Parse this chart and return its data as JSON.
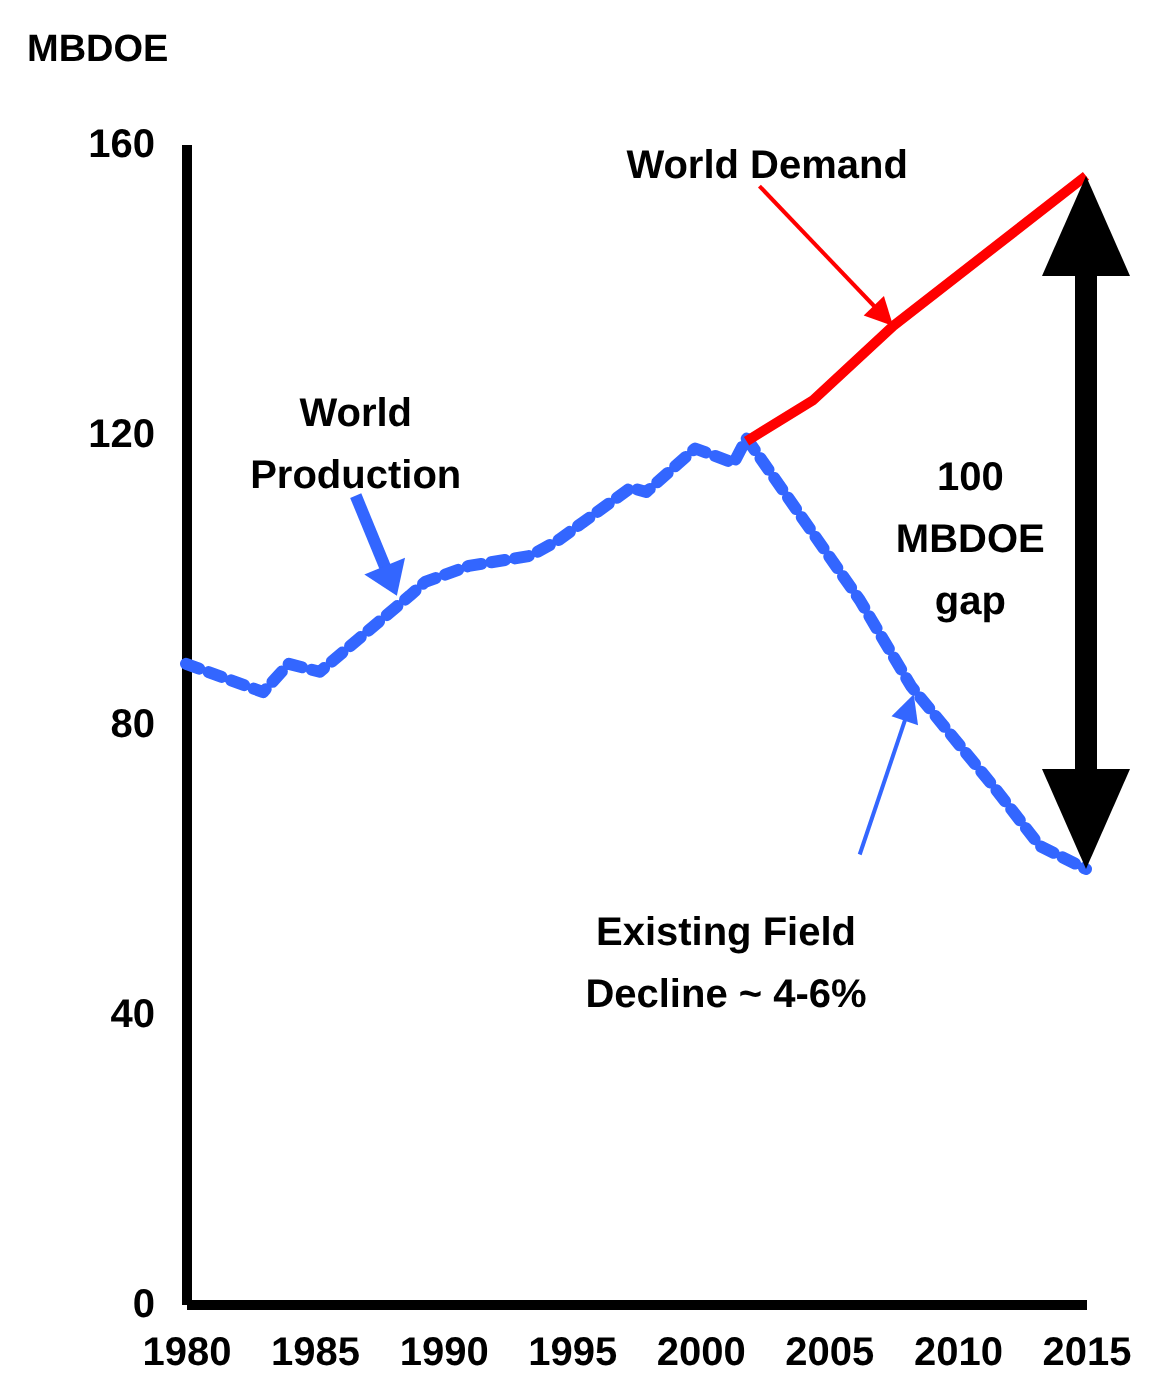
{
  "chart_data": {
    "type": "line",
    "ylabel": "MBDOE",
    "xlim": [
      1980,
      2015
    ],
    "xticks": [
      1980,
      1985,
      1990,
      1995,
      2000,
      2005,
      2010,
      2015
    ],
    "ylim": [
      0,
      160
    ],
    "yticks": [
      0,
      40,
      80,
      120,
      160
    ],
    "grid": false,
    "legend": false,
    "series": [
      {
        "name": "World\nProduction",
        "color": "#3366ff",
        "line_style": "dashed",
        "x": [
          1980,
          1983,
          1984,
          1985.2,
          1988.7,
          1989.3,
          1991,
          1993.4,
          1994.5,
          1997.3,
          1997.9,
          1999.8,
          2001.3,
          2001.8,
          2006.2,
          2008.2,
          2011.4,
          2013.2,
          2015
        ],
        "values": [
          88.3,
          84.4,
          88.3,
          87.2,
          97.7,
          99.6,
          101.8,
          103.2,
          105.4,
          112.6,
          112,
          118,
          116,
          119.4,
          97.1,
          85.2,
          71.4,
          63.2,
          60
        ]
      },
      {
        "name": "World Demand",
        "color": "#ff0000",
        "line_style": "solid",
        "x": [
          2001.8,
          2004.4,
          2007.5,
          2015
        ],
        "values": [
          119,
          124.7,
          134.9,
          155.6
        ]
      }
    ],
    "annotations": [
      "Existing Field\nDecline ~ 4-6%",
      "100\nMBDOE\ngap"
    ]
  }
}
